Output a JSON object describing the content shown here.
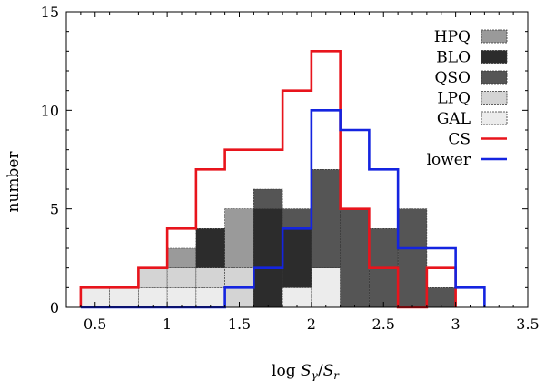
{
  "chart_data": {
    "type": "bar",
    "subtype": "stacked-histogram-with-step-lines",
    "xlabel_pre": "log ",
    "xlabel_s": "S",
    "xlabel_sub1": "γ",
    "xlabel_slash": "/",
    "xlabel_sub2": "r",
    "ylabel": "number",
    "xlim": [
      0.3,
      3.5
    ],
    "ylim": [
      0,
      15
    ],
    "bin_width": 0.2,
    "bin_starts": [
      0.4,
      0.6,
      0.8,
      1.0,
      1.2,
      1.4,
      1.6,
      1.8,
      2.0,
      2.2,
      2.4,
      2.6,
      2.8
    ],
    "x_ticks": [
      0.5,
      1,
      1.5,
      2,
      2.5,
      3,
      3.5
    ],
    "x_tick_labels": [
      "0.5",
      "1",
      "1.5",
      "2",
      "2.5",
      "3",
      "3.5"
    ],
    "y_ticks": [
      0,
      5,
      10,
      15
    ],
    "y_tick_labels": [
      "0",
      "5",
      "10",
      "15"
    ],
    "legend_position": "top-right",
    "series": [
      {
        "name": "GAL",
        "kind": "bar",
        "color": "#ececec",
        "values": [
          1,
          1,
          1,
          1,
          1,
          0,
          0,
          1,
          2,
          0,
          0,
          0,
          0
        ]
      },
      {
        "name": "LPQ",
        "kind": "bar",
        "color": "#d4d4d4",
        "values": [
          0,
          0,
          1,
          1,
          1,
          2,
          0,
          0,
          0,
          0,
          0,
          0,
          0
        ]
      },
      {
        "name": "HPQ",
        "kind": "bar",
        "color": "#9a9a9a",
        "values": [
          0,
          0,
          0,
          1,
          0,
          3,
          0,
          0,
          0,
          0,
          0,
          0,
          0
        ]
      },
      {
        "name": "BLO",
        "kind": "bar",
        "color": "#2c2c2c",
        "values": [
          0,
          0,
          0,
          0,
          2,
          0,
          5,
          3,
          0,
          0,
          0,
          0,
          0
        ]
      },
      {
        "name": "QSO",
        "kind": "bar",
        "color": "#555555",
        "values": [
          0,
          0,
          0,
          0,
          0,
          0,
          1,
          1,
          5,
          5,
          4,
          5,
          1
        ]
      },
      {
        "name": "CS",
        "kind": "line",
        "color": "#e8141c",
        "values": [
          1,
          1,
          2,
          4,
          7,
          8,
          8,
          11,
          13,
          5,
          2,
          0,
          2
        ]
      },
      {
        "name": "lower",
        "kind": "line",
        "color": "#1424e0",
        "values": [
          0,
          0,
          0,
          0,
          0,
          1,
          2,
          4,
          10,
          9,
          7,
          3,
          3
        ]
      }
    ],
    "lower_extra_bin": {
      "start": 3.0,
      "value": 1
    }
  }
}
